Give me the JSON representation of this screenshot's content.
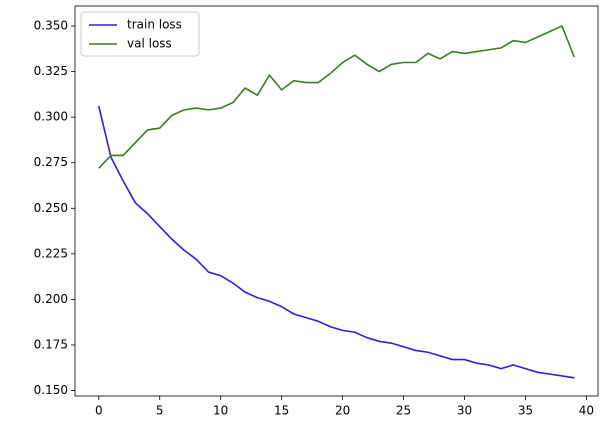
{
  "chart_data": {
    "type": "line",
    "x": [
      0,
      1,
      2,
      3,
      4,
      5,
      6,
      7,
      8,
      9,
      10,
      11,
      12,
      13,
      14,
      15,
      16,
      17,
      18,
      19,
      20,
      21,
      22,
      23,
      24,
      25,
      26,
      27,
      28,
      29,
      30,
      31,
      32,
      33,
      34,
      35,
      36,
      37,
      38,
      39
    ],
    "series": [
      {
        "name": "train loss",
        "color": "#2f1fd8",
        "values": [
          0.306,
          0.278,
          0.265,
          0.253,
          0.247,
          0.24,
          0.233,
          0.227,
          0.222,
          0.215,
          0.213,
          0.209,
          0.204,
          0.201,
          0.199,
          0.196,
          0.192,
          0.19,
          0.188,
          0.185,
          0.183,
          0.182,
          0.179,
          0.177,
          0.176,
          0.174,
          0.172,
          0.171,
          0.169,
          0.167,
          0.167,
          0.165,
          0.164,
          0.162,
          0.164,
          0.162,
          0.16,
          0.159,
          0.158,
          0.157
        ]
      },
      {
        "name": "val loss",
        "color": "#3a7d22",
        "values": [
          0.272,
          0.279,
          0.279,
          0.286,
          0.293,
          0.294,
          0.301,
          0.304,
          0.305,
          0.304,
          0.305,
          0.308,
          0.316,
          0.312,
          0.323,
          0.315,
          0.32,
          0.319,
          0.319,
          0.324,
          0.33,
          0.334,
          0.329,
          0.325,
          0.329,
          0.33,
          0.33,
          0.335,
          0.332,
          0.336,
          0.335,
          0.336,
          0.337,
          0.338,
          0.342,
          0.341,
          0.344,
          0.347,
          0.35,
          0.333
        ]
      }
    ],
    "xlim": [
      -1.95,
      40.95
    ],
    "xticks": [
      0,
      5,
      10,
      15,
      20,
      25,
      30,
      35,
      40
    ],
    "ylim": [
      0.147,
      0.361
    ],
    "yticks": [
      {
        "value": 0.15,
        "label": "0.150"
      },
      0.175,
      {
        "value": 0.2,
        "label": "0.200"
      },
      0.225,
      {
        "value": 0.25,
        "label": "0.250"
      },
      0.275,
      {
        "value": 0.3,
        "label": "0.300"
      },
      0.325,
      {
        "value": 0.35,
        "label": "0.350"
      }
    ],
    "legend": "upper left",
    "grid": false
  }
}
